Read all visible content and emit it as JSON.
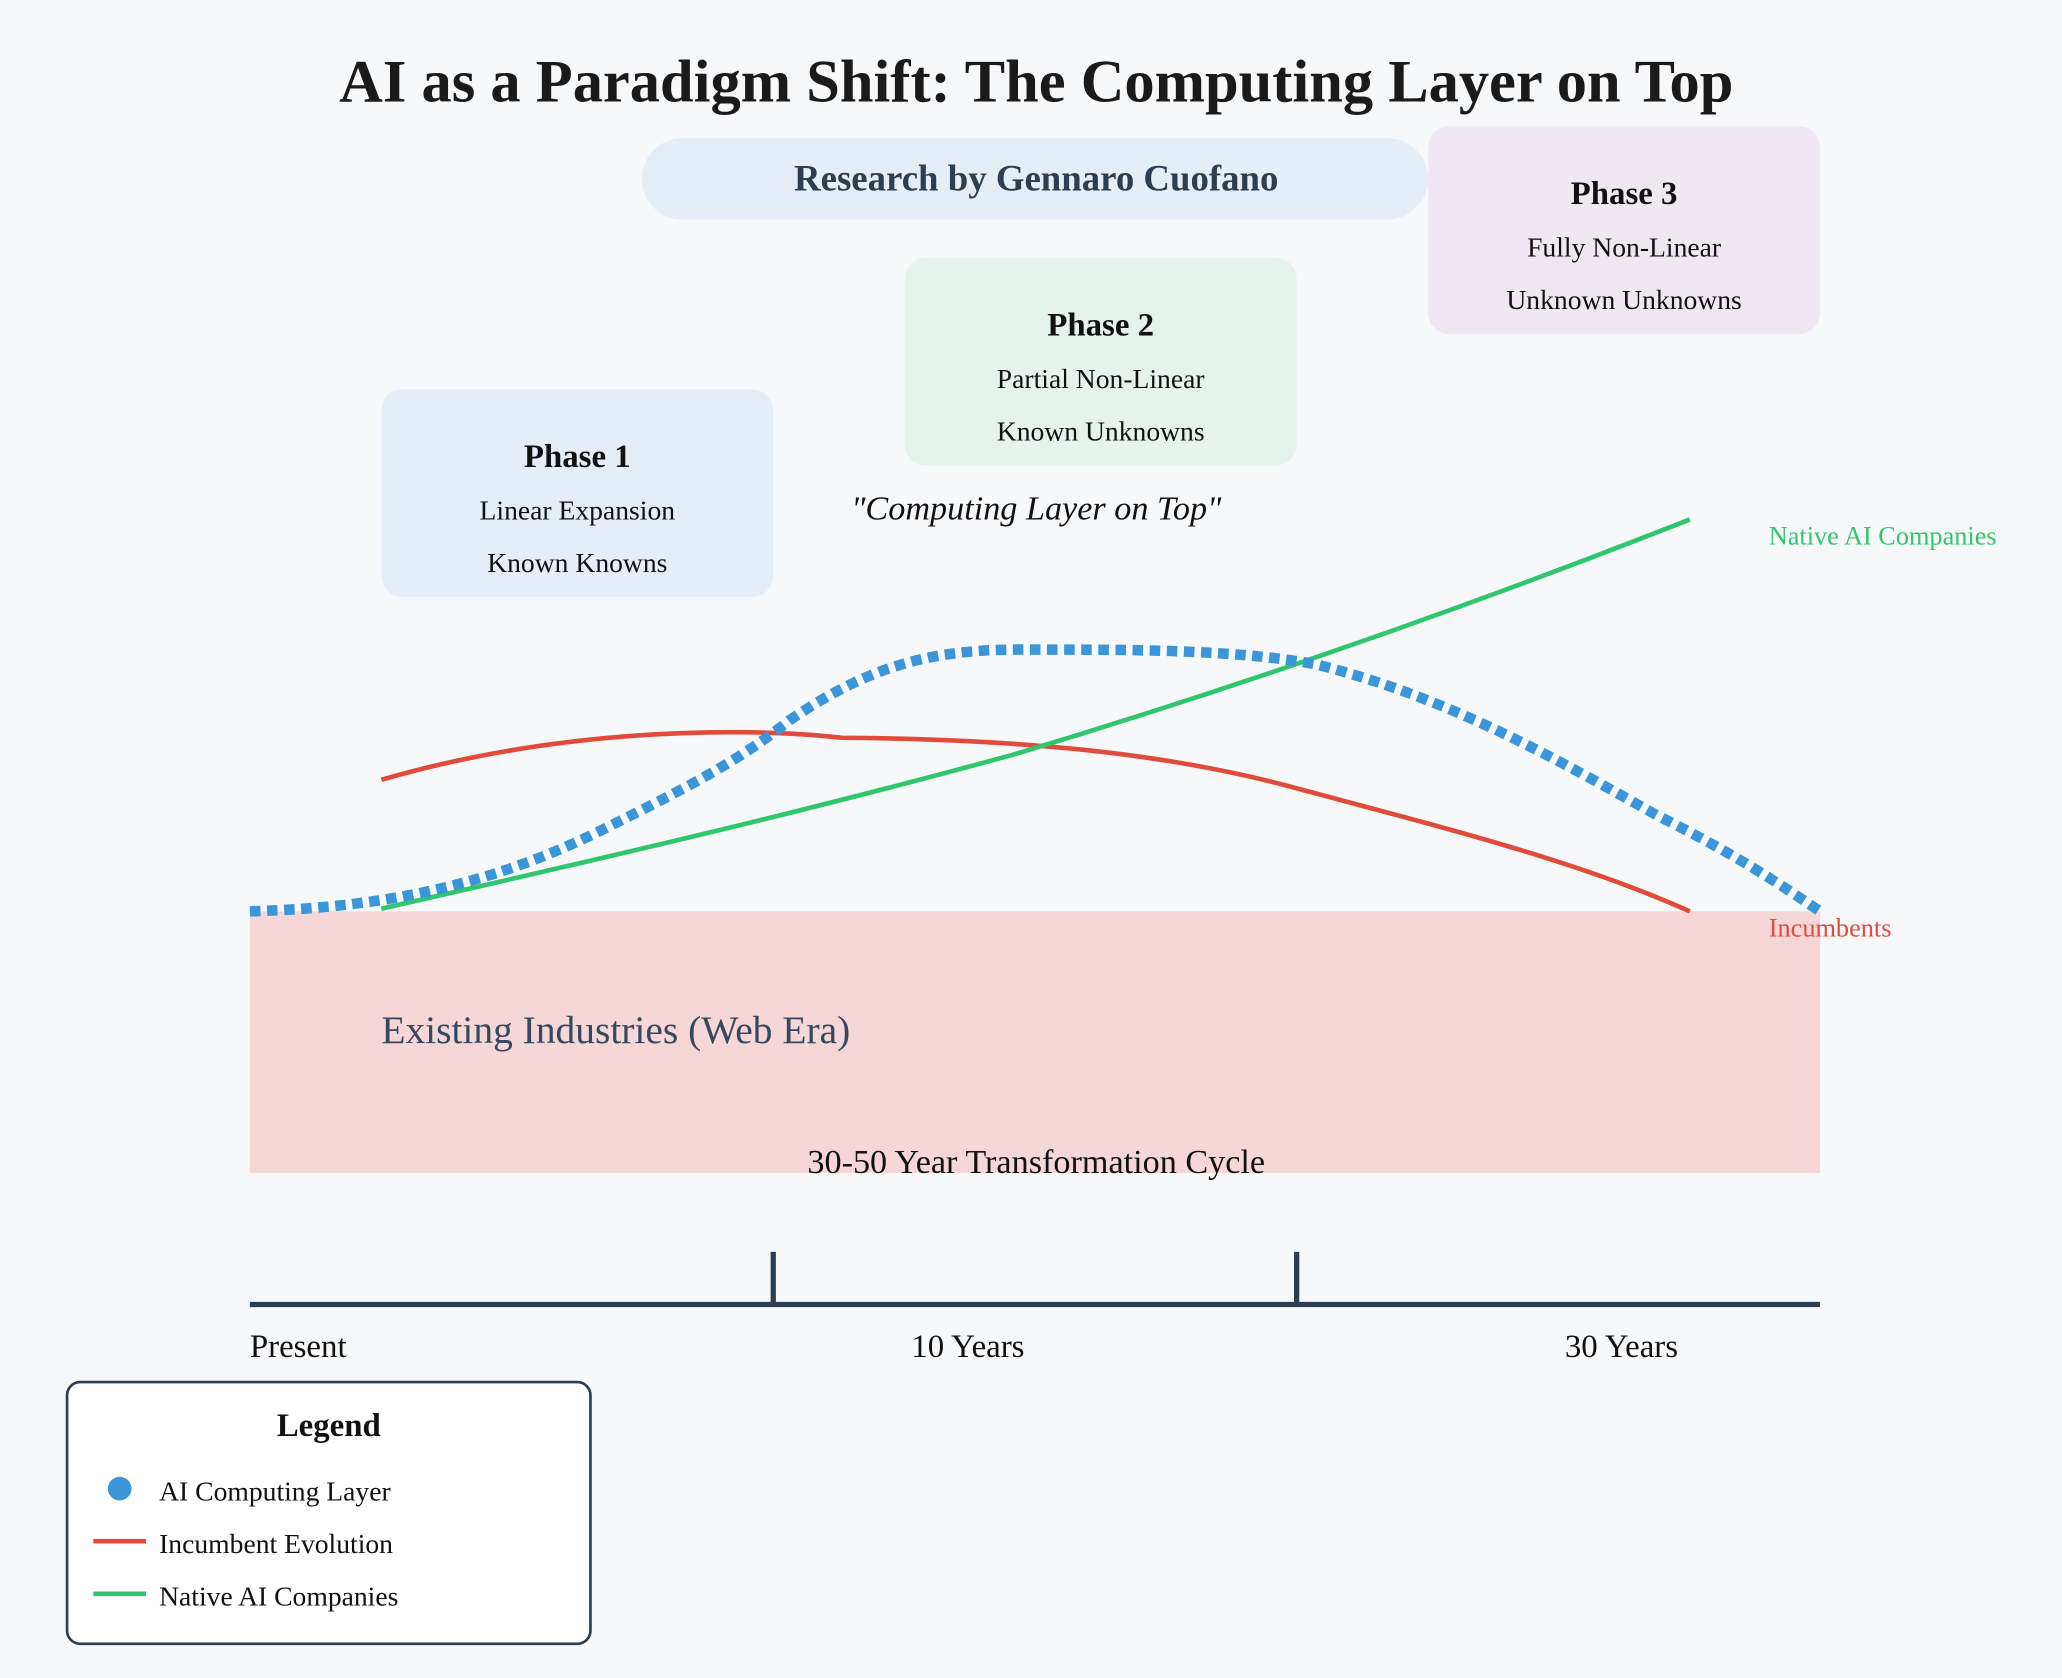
{
  "title": "AI as a Paradigm Shift: The Computing Layer on Top",
  "byline": "Research by Gennaro Cuofano",
  "phases": [
    {
      "title": "Phase 1",
      "line1": "Linear Expansion",
      "line2": "Known Knowns",
      "bg": "#e5eef7"
    },
    {
      "title": "Phase 2",
      "line1": "Partial Non-Linear",
      "line2": "Known Unknowns",
      "bg": "#e6f3ec"
    },
    {
      "title": "Phase 3",
      "line1": "Fully Non-Linear",
      "line2": "Unknown Unknowns",
      "bg": "#efe8f3"
    }
  ],
  "quote": "\"Computing Layer on Top\"",
  "existing_label": "Existing Industries (Web Era)",
  "cycle_label": "30-50 Year Transformation Cycle",
  "timeline": {
    "labels": [
      "Present",
      "10 Years",
      "30 Years"
    ]
  },
  "series_labels": {
    "native": "Native AI Companies",
    "incumbents": "Incumbents"
  },
  "legend": {
    "title": "Legend",
    "items": [
      {
        "label": "AI Computing Layer",
        "marker": "dot",
        "color": "#3a96d8"
      },
      {
        "label": "Incumbent Evolution",
        "marker": "line",
        "color": "#e04b3c"
      },
      {
        "label": "Native AI Companies",
        "marker": "line",
        "color": "#2fc66e"
      }
    ]
  },
  "colors": {
    "ai_layer": "#3a96d8",
    "incumbent": "#e04b3c",
    "native": "#2fc66e",
    "existing_fill": "#f6d6d6",
    "axis": "#2c3e50",
    "byline_bg": "#e5eef7",
    "byline_text": "#2c3e50"
  }
}
